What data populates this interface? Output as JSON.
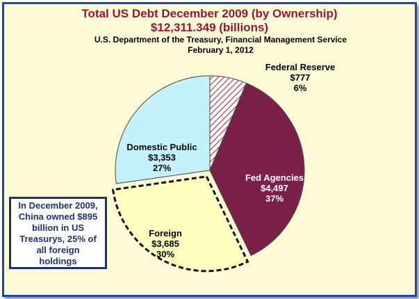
{
  "header": {
    "title_line1": "Total US Debt December 2009 (by Ownership)",
    "title_line2": "$12,311.349 (billions)",
    "subtitle_line1": "U.S. Department of the Treasury, Financial Management Service",
    "subtitle_line2": "February 1, 2012"
  },
  "note": {
    "lines": [
      "In December 2009,",
      "China owned $895",
      "billion in US",
      "Treasurys, 25% of",
      "all foreign",
      "holdings"
    ]
  },
  "colors": {
    "background": "#fdfbd5",
    "border": "#1a4aa8",
    "title": "#9b1533"
  },
  "chart_data": {
    "type": "pie",
    "title": "Total US Debt December 2009 (by Ownership)",
    "unit": "billions",
    "total": 12311.349,
    "series": [
      {
        "name": "Federal Reserve",
        "value": 777,
        "value_label": "$777",
        "percent": 6,
        "percent_label": "6%",
        "color": "#ffffff",
        "pattern": "red-diagonal-hatch",
        "exploded": false
      },
      {
        "name": "Fed Agencies",
        "value": 4497,
        "value_label": "$4,497",
        "percent": 37,
        "percent_label": "37%",
        "color": "#7b2048",
        "pattern": "solid",
        "exploded": false
      },
      {
        "name": "Foreign",
        "value": 3685,
        "value_label": "$3,685",
        "percent": 30,
        "percent_label": "30%",
        "color": "#ffffc0",
        "pattern": "solid",
        "exploded": true
      },
      {
        "name": "Domestic Public",
        "value": 3353,
        "value_label": "$3,353",
        "percent": 27,
        "percent_label": "27%",
        "color": "#c4f2fb",
        "pattern": "solid",
        "exploded": false
      }
    ]
  }
}
